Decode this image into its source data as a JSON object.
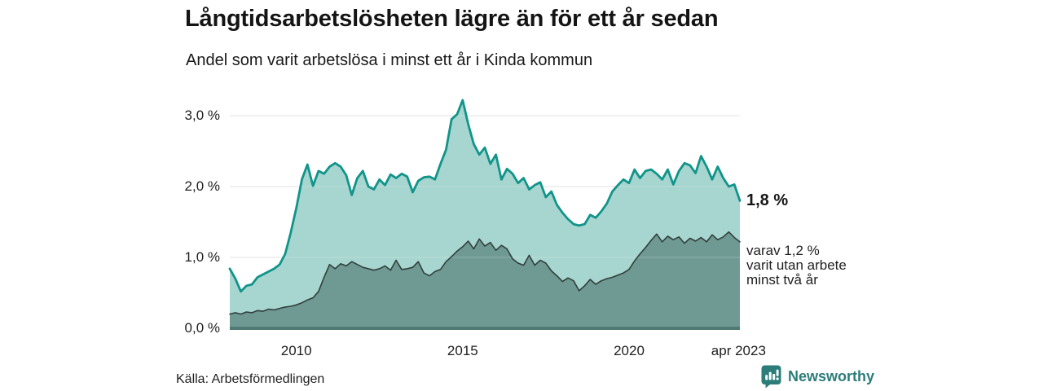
{
  "header": {
    "title": "Långtidsarbetslösheten lägre än för ett år sedan",
    "subtitle": "Andel som varit arbetslösa i minst ett år i Kinda kommun"
  },
  "chart_data": {
    "type": "area",
    "title": "Långtidsarbetslösheten lägre än för ett år sedan",
    "subtitle": "Andel som varit arbetslösa i minst ett år i Kinda kommun",
    "unit": "%",
    "grid": "horizontal",
    "legend_position": "none",
    "x_domain": {
      "start": 2008.0,
      "end": 2023.33
    },
    "ylim": [
      0,
      3.3
    ],
    "x_ticks": [
      {
        "label": "2010",
        "year": 2010
      },
      {
        "label": "2015",
        "year": 2015
      },
      {
        "label": "2020",
        "year": 2020
      },
      {
        "label": "apr 2023",
        "year": 2023.29
      }
    ],
    "y_ticks": [
      {
        "label": "3,0 %",
        "value": 3
      },
      {
        "label": "2,0 %",
        "value": 2
      },
      {
        "label": "1,0 %",
        "value": 1
      },
      {
        "label": "0,0 %",
        "value": 0
      }
    ],
    "series": [
      {
        "name": "Andel arbetslösa minst ett år",
        "line_color": "#11948a",
        "fill_color": "#a7d5cf",
        "line_width": 2.8,
        "end_value": 1.8,
        "values": [
          0.84,
          0.7,
          0.52,
          0.6,
          0.62,
          0.72,
          0.76,
          0.8,
          0.84,
          0.9,
          1.05,
          1.35,
          1.7,
          2.1,
          2.31,
          2.01,
          2.22,
          2.18,
          2.28,
          2.33,
          2.28,
          2.16,
          1.88,
          2.12,
          2.22,
          2.0,
          1.96,
          2.1,
          2.02,
          2.17,
          2.12,
          2.18,
          2.14,
          1.92,
          2.08,
          2.13,
          2.14,
          2.1,
          2.32,
          2.52,
          2.95,
          3.02,
          3.22,
          2.88,
          2.6,
          2.45,
          2.55,
          2.32,
          2.45,
          2.1,
          2.25,
          2.18,
          2.05,
          2.12,
          1.96,
          2.02,
          2.06,
          1.85,
          1.93,
          1.74,
          1.63,
          1.54,
          1.47,
          1.45,
          1.47,
          1.6,
          1.56,
          1.65,
          1.76,
          1.93,
          2.02,
          2.1,
          2.05,
          2.24,
          2.12,
          2.22,
          2.24,
          2.18,
          2.1,
          2.24,
          2.03,
          2.22,
          2.33,
          2.3,
          2.19,
          2.43,
          2.28,
          2.1,
          2.28,
          2.12,
          2.0,
          2.03,
          1.8
        ]
      },
      {
        "name": "varav utan arbete minst två år",
        "line_color": "#313f3c",
        "fill_color": "#6f9a94",
        "line_width": 1.6,
        "end_value": 1.2,
        "values": [
          0.2,
          0.22,
          0.2,
          0.23,
          0.22,
          0.25,
          0.24,
          0.27,
          0.26,
          0.28,
          0.3,
          0.31,
          0.33,
          0.36,
          0.4,
          0.43,
          0.52,
          0.72,
          0.9,
          0.84,
          0.91,
          0.88,
          0.94,
          0.9,
          0.86,
          0.84,
          0.82,
          0.84,
          0.88,
          0.82,
          0.96,
          0.83,
          0.84,
          0.86,
          0.94,
          0.78,
          0.74,
          0.8,
          0.83,
          0.94,
          1.01,
          1.09,
          1.15,
          1.23,
          1.12,
          1.26,
          1.16,
          1.21,
          1.1,
          1.17,
          1.12,
          0.98,
          0.92,
          0.89,
          1.03,
          0.89,
          0.96,
          0.92,
          0.81,
          0.74,
          0.66,
          0.71,
          0.67,
          0.53,
          0.6,
          0.69,
          0.62,
          0.67,
          0.7,
          0.72,
          0.75,
          0.78,
          0.83,
          0.95,
          1.05,
          1.14,
          1.24,
          1.33,
          1.22,
          1.3,
          1.25,
          1.29,
          1.2,
          1.27,
          1.23,
          1.28,
          1.22,
          1.32,
          1.25,
          1.29,
          1.36,
          1.28,
          1.22
        ]
      }
    ],
    "end_value_label": "1,8 %",
    "end_annotation_lines": [
      "varav 1,2 %",
      "varit utan arbete",
      "minst två år"
    ]
  },
  "colors": {
    "accent_teal": "#11948a",
    "light_fill": "#a7d5cf",
    "dark_fill": "#6f9a94",
    "dark_line": "#313f3c",
    "baseline": "#4f7a75",
    "gridline": "#d9d9d9",
    "brand": "#2c7d7a"
  },
  "footer": {
    "source": "Källa: Arbetsförmedlingen",
    "brand": "Newsworthy"
  }
}
